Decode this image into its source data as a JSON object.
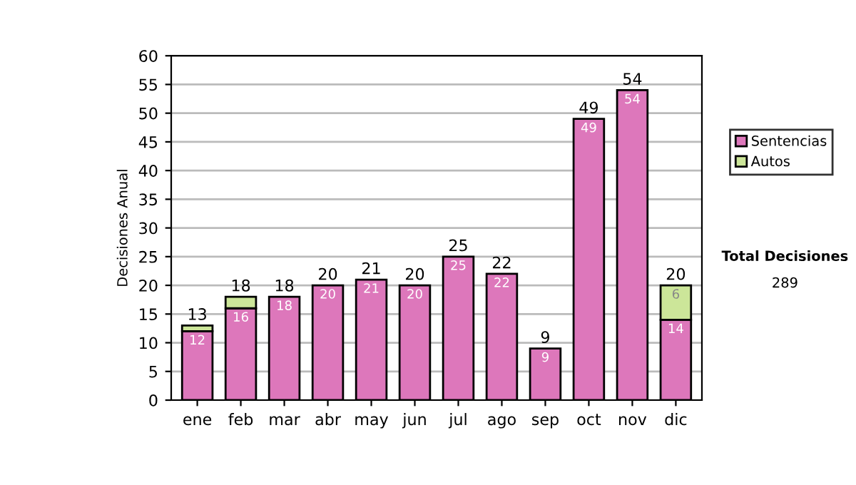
{
  "chart_data": {
    "type": "bar",
    "ylabel": "Decisiones Anual",
    "stacked": true,
    "categories": [
      "ene",
      "feb",
      "mar",
      "abr",
      "may",
      "jun",
      "jul",
      "ago",
      "sep",
      "oct",
      "nov",
      "dic"
    ],
    "series": [
      {
        "name": "Sentencias",
        "color": "#dd77bb",
        "values": [
          12,
          16,
          18,
          20,
          21,
          20,
          25,
          22,
          9,
          49,
          54,
          14
        ],
        "value_labels": [
          "12",
          "16",
          "18",
          "20",
          "21",
          "20",
          "25",
          "22",
          "9",
          "49",
          "54",
          "14"
        ]
      },
      {
        "name": "Autos",
        "color": "#cce699",
        "values": [
          1,
          2,
          0,
          0,
          0,
          0,
          0,
          0,
          0,
          0,
          0,
          6
        ],
        "value_labels": [
          null,
          null,
          null,
          null,
          null,
          null,
          null,
          null,
          null,
          null,
          null,
          "6"
        ]
      }
    ],
    "totals": [
      "13",
      "18",
      "18",
      "20",
      "21",
      "20",
      "25",
      "22",
      "9",
      "49",
      "54",
      "20"
    ],
    "ylim": [
      0,
      60
    ],
    "yticks": [
      0,
      5,
      10,
      15,
      20,
      25,
      30,
      35,
      40,
      45,
      50,
      55,
      60
    ],
    "grid": "y",
    "legend": "right",
    "annotations": [
      "Total Decisiones",
      "289"
    ]
  }
}
